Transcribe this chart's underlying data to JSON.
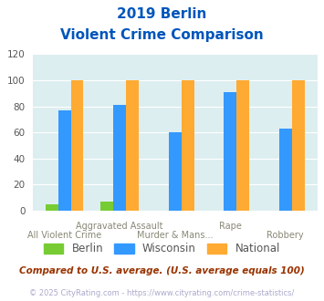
{
  "title_line1": "2019 Berlin",
  "title_line2": "Violent Crime Comparison",
  "categories": [
    "All Violent Crime",
    "Aggravated Assault",
    "Murder & Mans...",
    "Rape",
    "Robbery"
  ],
  "series": {
    "Berlin": [
      5,
      7,
      0,
      0,
      0
    ],
    "Wisconsin": [
      77,
      81,
      60,
      91,
      63
    ],
    "National": [
      100,
      100,
      100,
      100,
      100
    ]
  },
  "colors": {
    "Berlin": "#77cc33",
    "Wisconsin": "#3399ff",
    "National": "#ffaa33"
  },
  "ylim": [
    0,
    120
  ],
  "yticks": [
    0,
    20,
    40,
    60,
    80,
    100,
    120
  ],
  "bg_color": "#ddeef0",
  "xlabel_top": [
    "",
    "Aggravated Assault",
    "",
    "Rape",
    ""
  ],
  "xlabel_bottom": [
    "All Violent Crime",
    "",
    "Murder & Mans...",
    "",
    "Robbery"
  ],
  "footnote1": "Compared to U.S. average. (U.S. average equals 100)",
  "footnote2": "© 2025 CityRating.com - https://www.cityrating.com/crime-statistics/",
  "title_color": "#0055bb",
  "footnote1_color": "#993300",
  "footnote2_color": "#aaaacc",
  "xlabel_color": "#888877"
}
